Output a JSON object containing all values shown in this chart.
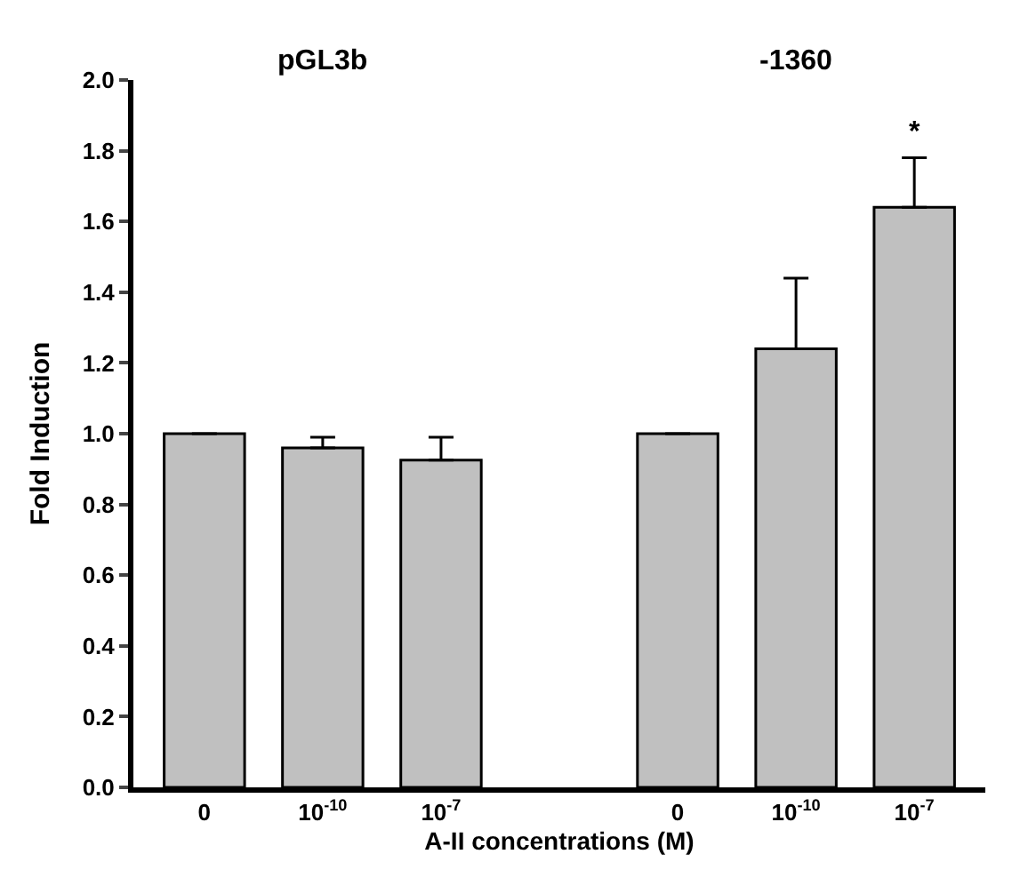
{
  "chart_data": {
    "type": "bar",
    "categories": [
      "0",
      "10$^{-10}$",
      "10$^{-7}$",
      null,
      "0",
      "10$^{-10}$",
      "10$^{-7}$"
    ],
    "values": [
      1.0,
      0.96,
      0.925,
      null,
      1.0,
      1.24,
      1.64
    ],
    "errors": [
      null,
      [
        0.96,
        0.99
      ],
      [
        0.925,
        0.99
      ],
      null,
      null,
      [
        1.24,
        1.44
      ],
      [
        1.64,
        1.78
      ]
    ],
    "color": "#c0c0c0",
    "xlabel": "A-II concentrations (M)",
    "ylabel": "Fold Induction",
    "ylim": [
      0,
      2.0
    ],
    "yticks": [
      {
        "value": 0,
        "label": "0.0"
      },
      0.2,
      0.4,
      0.6,
      0.8,
      {
        "value": 1,
        "label": "1.0"
      },
      1.2,
      1.4,
      1.6,
      1.8,
      {
        "value": 2,
        "label": "2.0"
      }
    ],
    "annotations": [
      "pGL3b",
      "-1360",
      "*"
    ]
  }
}
